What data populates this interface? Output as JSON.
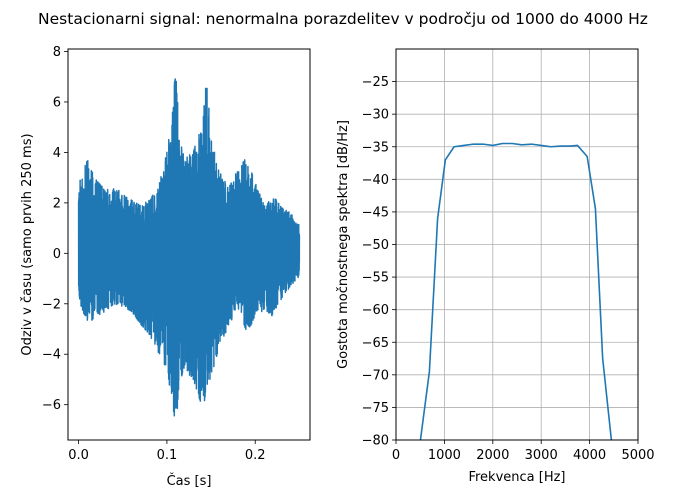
{
  "figure": {
    "title": "Nestacionarni signal: nenormalna porazdelitev v področju od 1000 do 4000 Hz"
  },
  "chart_data": [
    {
      "type": "line",
      "xlabel": "Čas [s]",
      "ylabel": "Odziv v času (samo prvih 250 ms)",
      "xlim": [
        -0.012,
        0.262
      ],
      "ylim": [
        -7.4,
        8.1
      ],
      "xticks": [
        0.0,
        0.1,
        0.2
      ],
      "xtick_labels": [
        "0.0",
        "0.1",
        "0.2"
      ],
      "yticks": [
        -6,
        -4,
        -2,
        0,
        2,
        4,
        6,
        8
      ],
      "ytick_labels": [
        "−6",
        "−4",
        "−2",
        "0",
        "2",
        "4",
        "6",
        "8"
      ],
      "grid": false,
      "color": "#1f77b4",
      "envelope": {
        "t": [
          0.0,
          0.01,
          0.02,
          0.03,
          0.04,
          0.05,
          0.06,
          0.07,
          0.08,
          0.09,
          0.1,
          0.105,
          0.11,
          0.115,
          0.12,
          0.13,
          0.14,
          0.145,
          0.15,
          0.16,
          0.17,
          0.18,
          0.19,
          0.2,
          0.21,
          0.22,
          0.23,
          0.24,
          0.25
        ],
        "max": [
          2.8,
          3.7,
          2.9,
          2.5,
          2.6,
          2.4,
          2.1,
          1.9,
          2.1,
          2.6,
          4.0,
          5.2,
          7.4,
          4.5,
          3.8,
          4.2,
          5.0,
          7.0,
          4.5,
          3.2,
          2.6,
          3.3,
          3.8,
          2.8,
          1.9,
          2.3,
          1.8,
          1.6,
          1.1
        ],
        "min": [
          -1.8,
          -2.8,
          -2.5,
          -2.3,
          -2.0,
          -2.1,
          -2.3,
          -2.8,
          -3.2,
          -3.9,
          -4.6,
          -5.7,
          -6.8,
          -5.0,
          -4.6,
          -5.0,
          -6.1,
          -5.6,
          -4.9,
          -3.6,
          -2.9,
          -2.1,
          -3.1,
          -2.6,
          -2.2,
          -2.5,
          -1.8,
          -1.3,
          -0.9
        ]
      }
    },
    {
      "type": "line",
      "xlabel": "Frekvenca [Hz]",
      "ylabel": "Gostota močnostnega spektra [dB/Hz]",
      "xlim": [
        0,
        5000
      ],
      "ylim": [
        -80,
        -20
      ],
      "xticks": [
        0,
        1000,
        2000,
        3000,
        4000,
        5000
      ],
      "xtick_labels": [
        "0",
        "1000",
        "2000",
        "3000",
        "4000",
        "5000"
      ],
      "yticks": [
        -80,
        -75,
        -70,
        -65,
        -60,
        -55,
        -50,
        -45,
        -40,
        -35,
        -30,
        -25
      ],
      "ytick_labels": [
        "−80",
        "−75",
        "−70",
        "−65",
        "−60",
        "−55",
        "−50",
        "−45",
        "−40",
        "−35",
        "−30",
        "−25"
      ],
      "grid": true,
      "color": "#1f77b4",
      "x": [
        470,
        690,
        860,
        1020,
        1200,
        1400,
        1600,
        1800,
        2000,
        2200,
        2400,
        2600,
        2800,
        3000,
        3200,
        3400,
        3600,
        3750,
        3950,
        4120,
        4270,
        4450,
        4550
      ],
      "y": [
        -82,
        -69.5,
        -46,
        -37,
        -35,
        -34.8,
        -34.6,
        -34.6,
        -34.8,
        -34.5,
        -34.5,
        -34.7,
        -34.6,
        -34.8,
        -35,
        -34.9,
        -34.9,
        -34.8,
        -36.5,
        -44.5,
        -67.5,
        -80,
        -82
      ]
    }
  ]
}
